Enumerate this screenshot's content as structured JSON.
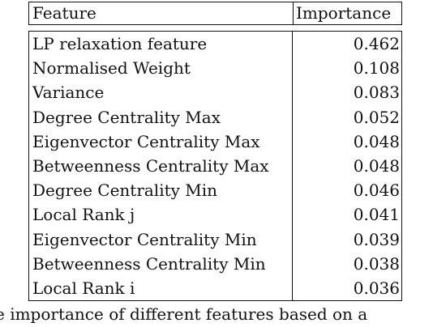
{
  "table": {
    "header": {
      "feature": "Feature",
      "importance": "Importance"
    },
    "rows": [
      {
        "feature": "LP relaxation feature",
        "importance": "0.462"
      },
      {
        "feature": "Normalised Weight",
        "importance": "0.108"
      },
      {
        "feature": "Variance",
        "importance": "0.083"
      },
      {
        "feature": "Degree Centrality Max",
        "importance": "0.052"
      },
      {
        "feature": "Eigenvector Centrality Max",
        "importance": "0.048"
      },
      {
        "feature": "Betweenness Centrality Max",
        "importance": "0.048"
      },
      {
        "feature": "Degree Centrality Min",
        "importance": "0.046"
      },
      {
        "feature": "Local Rank j",
        "importance": "0.041"
      },
      {
        "feature": "Eigenvector Centrality Min",
        "importance": "0.039"
      },
      {
        "feature": "Betweenness Centrality Min",
        "importance": "0.038"
      },
      {
        "feature": "Local Rank i",
        "importance": "0.036"
      }
    ]
  },
  "caption": "e importance of different features based on a"
}
